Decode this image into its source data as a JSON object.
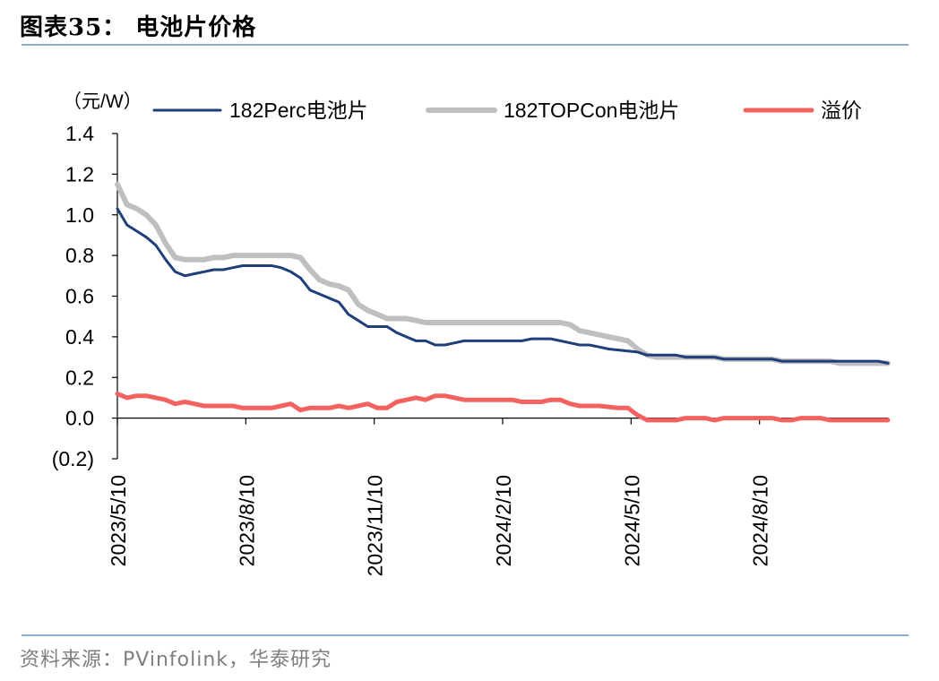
{
  "figure": {
    "title": "图表35：  电池片价格",
    "source": "资料来源：PVinfolink，华泰研究"
  },
  "chart_data": {
    "type": "line",
    "unit_label": "（元/W）",
    "ylim": [
      -0.2,
      1.4
    ],
    "y_ticks": [
      1.4,
      1.2,
      1.0,
      0.8,
      0.6,
      0.4,
      0.2,
      0.0,
      -0.2
    ],
    "y_tick_labels": [
      "1.4",
      "1.2",
      "1.0",
      "0.8",
      "0.6",
      "0.4",
      "0.2",
      "0.0",
      "(0.2)"
    ],
    "x_tick_labels": [
      "2023/5/10",
      "2023/8/10",
      "2023/11/10",
      "2024/2/10",
      "2024/5/10",
      "2024/8/10"
    ],
    "x_tick_index": [
      0,
      10,
      20,
      30,
      40,
      50
    ],
    "x_max_index": 60,
    "series": [
      {
        "name": "182Perc电池片",
        "color": "#1f3f7a",
        "values": [
          1.03,
          0.95,
          0.92,
          0.89,
          0.85,
          0.78,
          0.72,
          0.7,
          0.71,
          0.72,
          0.73,
          0.73,
          0.74,
          0.75,
          0.75,
          0.75,
          0.75,
          0.74,
          0.72,
          0.69,
          0.63,
          0.61,
          0.59,
          0.57,
          0.51,
          0.48,
          0.45,
          0.45,
          0.45,
          0.42,
          0.4,
          0.38,
          0.38,
          0.36,
          0.36,
          0.37,
          0.38,
          0.38,
          0.38,
          0.38,
          0.38,
          0.38,
          0.38,
          0.39,
          0.39,
          0.39,
          0.38,
          0.37,
          0.36,
          0.36,
          0.35,
          0.34,
          0.335,
          0.33,
          0.325,
          0.31,
          0.31,
          0.31,
          0.31,
          0.3,
          0.3,
          0.3,
          0.3,
          0.29,
          0.29,
          0.29,
          0.29,
          0.29,
          0.29,
          0.28,
          0.28,
          0.28,
          0.28,
          0.28,
          0.28,
          0.28,
          0.28,
          0.28,
          0.28,
          0.28,
          0.27
        ]
      },
      {
        "name": "182TOPCon电池片",
        "color": "#bfbfbf",
        "values": [
          1.15,
          1.05,
          1.03,
          1.0,
          0.95,
          0.86,
          0.79,
          0.78,
          0.78,
          0.78,
          0.79,
          0.79,
          0.8,
          0.8,
          0.8,
          0.8,
          0.8,
          0.8,
          0.8,
          0.79,
          0.73,
          0.68,
          0.66,
          0.65,
          0.63,
          0.56,
          0.53,
          0.51,
          0.49,
          0.49,
          0.49,
          0.48,
          0.47,
          0.47,
          0.47,
          0.47,
          0.47,
          0.47,
          0.47,
          0.47,
          0.47,
          0.47,
          0.47,
          0.47,
          0.47,
          0.47,
          0.47,
          0.46,
          0.43,
          0.42,
          0.41,
          0.4,
          0.39,
          0.38,
          0.34,
          0.31,
          0.3,
          0.3,
          0.3,
          0.3,
          0.3,
          0.3,
          0.3,
          0.29,
          0.29,
          0.29,
          0.29,
          0.29,
          0.29,
          0.28,
          0.28,
          0.28,
          0.28,
          0.28,
          0.28,
          0.27,
          0.27,
          0.27,
          0.27,
          0.27,
          0.27
        ]
      },
      {
        "name": "溢价",
        "color": "#f4625f",
        "values": [
          0.12,
          0.1,
          0.11,
          0.11,
          0.1,
          0.09,
          0.07,
          0.08,
          0.07,
          0.06,
          0.06,
          0.06,
          0.06,
          0.05,
          0.05,
          0.05,
          0.05,
          0.06,
          0.07,
          0.04,
          0.05,
          0.05,
          0.05,
          0.06,
          0.05,
          0.06,
          0.07,
          0.05,
          0.05,
          0.08,
          0.09,
          0.1,
          0.09,
          0.11,
          0.11,
          0.1,
          0.09,
          0.09,
          0.09,
          0.09,
          0.09,
          0.09,
          0.08,
          0.08,
          0.08,
          0.09,
          0.09,
          0.07,
          0.06,
          0.06,
          0.06,
          0.055,
          0.05,
          0.05,
          0.015,
          -0.01,
          -0.01,
          -0.01,
          -0.01,
          0.0,
          0.0,
          0.0,
          -0.01,
          0.0,
          0.0,
          0.0,
          0.0,
          0.0,
          0.0,
          -0.01,
          -0.01,
          0.0,
          0.0,
          0.0,
          -0.01,
          -0.01,
          -0.01,
          -0.01,
          -0.01,
          -0.01,
          -0.01
        ]
      }
    ]
  }
}
